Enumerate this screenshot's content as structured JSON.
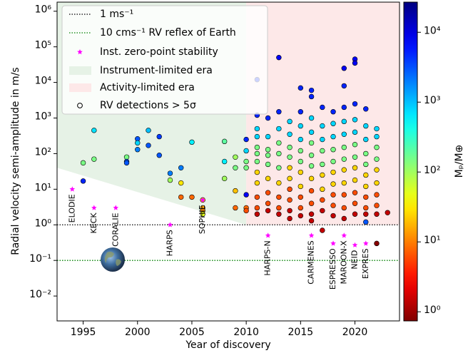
{
  "chart_data": {
    "type": "scatter",
    "xlabel": "Year of discovery",
    "ylabel": "Radial velocity semi-amplitude in m/s",
    "clabel": "Mₚ/M⊕",
    "log_y": true,
    "log_c": true,
    "xlim": [
      1992.6,
      2024.1
    ],
    "xticks": [
      1995,
      2000,
      2005,
      2010,
      2015,
      2020
    ],
    "ylim": [
      0.002,
      1800000
    ],
    "yticks": [
      {
        "value": 0.01,
        "label": "10⁻²"
      },
      {
        "value": 0.1,
        "label": "10⁻¹"
      },
      {
        "value": 1,
        "label": "10⁰"
      },
      {
        "value": 10,
        "label": "10¹"
      },
      {
        "value": 100,
        "label": "10²"
      },
      {
        "value": 1000,
        "label": "10³"
      },
      {
        "value": 10000,
        "label": "10⁴"
      },
      {
        "value": 100000,
        "label": "10⁵"
      },
      {
        "value": 1000000,
        "label": "10⁶"
      }
    ],
    "clim": [
      0.74,
      27000
    ],
    "cticks": [
      {
        "value": 1,
        "label": "10⁰"
      },
      {
        "value": 10,
        "label": "10¹"
      },
      {
        "value": 100,
        "label": "10²"
      },
      {
        "value": 1000,
        "label": "10³"
      },
      {
        "value": 10000,
        "label": "10⁴"
      }
    ],
    "colormap": "jet_r",
    "lines": [
      {
        "name": "1 ms⁻¹",
        "value": 1,
        "color": "#000000"
      },
      {
        "name": "10 cms⁻¹ RV reflex of Earth",
        "value": 0.1,
        "color": "#008000"
      }
    ],
    "stars_label": "Inst. zero-point stability",
    "star_color": "#ff00ff",
    "eras": {
      "instrument": {
        "label": "Instrument-limited era",
        "color": "#e6f2e6",
        "end_year": 2010,
        "K_start": 40,
        "K_end": 1
      },
      "activity": {
        "label": "Activity-limited era",
        "color": "#fde8e8",
        "start_year": 2010,
        "K_floor": 1
      }
    },
    "points_label": "RV detections > 5σ",
    "instruments": [
      {
        "name": "ELODIE",
        "year": 1994,
        "stability": 10
      },
      {
        "name": "KECK",
        "year": 1996,
        "stability": 3
      },
      {
        "name": "CORALIE",
        "year": 1998,
        "stability": 3
      },
      {
        "name": "HARPS",
        "year": 2003,
        "stability": 1
      },
      {
        "name": "SOPHIE",
        "year": 2006,
        "stability": 5
      },
      {
        "name": "HARPS-N",
        "year": 2012,
        "stability": 0.5
      },
      {
        "name": "CARMENES",
        "year": 2016,
        "stability": 0.5
      },
      {
        "name": "ESPRESSO",
        "year": 2018,
        "stability": 0.3
      },
      {
        "name": "MAROON-X",
        "year": 2019,
        "stability": 0.5
      },
      {
        "name": "NEID",
        "year": 2020,
        "stability": 0.27
      },
      {
        "name": "EXPRES",
        "year": 2021,
        "stability": 0.3
      }
    ],
    "series": [
      {
        "name": "RV detections > 5σ",
        "x": [
          1995,
          1995,
          1996,
          1996,
          1999,
          1999,
          1999,
          2000,
          2000,
          2000,
          2001,
          2001,
          2002,
          2002,
          2003,
          2003,
          2004,
          2004,
          2004,
          2005,
          2005,
          2006,
          2006,
          2006,
          2006,
          2008,
          2008,
          2008,
          2009,
          2009,
          2009,
          2009,
          2010,
          2010,
          2010,
          2010,
          2010,
          2010,
          2010,
          2011,
          2011,
          2011,
          2011,
          2011,
          2011,
          2011,
          2011,
          2011,
          2011,
          2011,
          2011,
          2012,
          2012,
          2012,
          2012,
          2012,
          2012,
          2012,
          2012,
          2012,
          2013,
          2013,
          2013,
          2013,
          2013,
          2013,
          2013,
          2013,
          2013,
          2013,
          2014,
          2014,
          2014,
          2014,
          2014,
          2014,
          2014,
          2014,
          2014,
          2014,
          2015,
          2015,
          2015,
          2015,
          2015,
          2015,
          2015,
          2015,
          2015,
          2015,
          2015,
          2016,
          2016,
          2016,
          2016,
          2016,
          2016,
          2016,
          2016,
          2016,
          2016,
          2016,
          2016,
          2017,
          2017,
          2017,
          2017,
          2017,
          2017,
          2017,
          2017,
          2017,
          2017,
          2018,
          2018,
          2018,
          2018,
          2018,
          2018,
          2018,
          2018,
          2018,
          2018,
          2019,
          2019,
          2019,
          2019,
          2019,
          2019,
          2019,
          2019,
          2019,
          2019,
          2019,
          2019,
          2020,
          2020,
          2020,
          2020,
          2020,
          2020,
          2020,
          2020,
          2020,
          2020,
          2020,
          2020,
          2021,
          2021,
          2021,
          2021,
          2021,
          2021,
          2021,
          2021,
          2021,
          2021,
          2021,
          2022,
          2022,
          2022,
          2022,
          2022,
          2022,
          2022,
          2022,
          2022,
          2022,
          2023
        ],
        "values": [
          17,
          55,
          450,
          70,
          80,
          60,
          55,
          260,
          200,
          130,
          450,
          170,
          300,
          90,
          28,
          18,
          40,
          6,
          15,
          210,
          6,
          5,
          3,
          2.5,
          2,
          220,
          60,
          20,
          9,
          80,
          40,
          3,
          250,
          120,
          60,
          40,
          7,
          3,
          2.5,
          12000,
          1200,
          500,
          300,
          150,
          100,
          60,
          30,
          15,
          6,
          3,
          2,
          1000,
          300,
          130,
          90,
          50,
          20,
          8,
          4,
          2.5,
          50000,
          1500,
          500,
          200,
          100,
          40,
          15,
          6,
          3,
          2,
          800,
          350,
          150,
          80,
          40,
          20,
          10,
          5,
          2.5,
          1.5,
          7000,
          1500,
          600,
          250,
          120,
          60,
          30,
          12,
          6,
          3,
          1.8,
          6000,
          4000,
          1000,
          400,
          200,
          90,
          45,
          20,
          9,
          4,
          2,
          1.3,
          2000,
          600,
          250,
          120,
          50,
          25,
          10,
          5,
          2.5,
          0.7,
          1500,
          700,
          300,
          130,
          60,
          30,
          14,
          7,
          3.5,
          1.8,
          25000,
          8000,
          2000,
          800,
          350,
          150,
          70,
          35,
          15,
          7,
          3,
          1.5,
          45000,
          35000,
          2500,
          900,
          400,
          180,
          80,
          40,
          18,
          8,
          4,
          2,
          1800,
          600,
          250,
          100,
          50,
          25,
          12,
          6,
          3,
          1.2,
          2,
          500,
          300,
          150,
          70,
          35,
          15,
          7,
          3.5,
          2,
          0.3,
          2.2
        ],
        "masses": [
          5000,
          150,
          700,
          150,
          150,
          3000,
          3000,
          3000,
          800,
          2000,
          1000,
          3000,
          4000,
          3000,
          2000,
          100,
          2000,
          8,
          30,
          600,
          8,
          20,
          15,
          12,
          50,
          200,
          600,
          100,
          20,
          100,
          150,
          8,
          5000,
          800,
          150,
          150,
          8000,
          8,
          6,
          5000,
          5000,
          800,
          800,
          150,
          150,
          150,
          25,
          25,
          6,
          6,
          1.5,
          5000,
          800,
          150,
          150,
          150,
          25,
          6,
          6,
          1.5,
          8000,
          5000,
          800,
          150,
          150,
          150,
          25,
          6,
          6,
          1.5,
          800,
          800,
          150,
          150,
          25,
          25,
          6,
          6,
          1.5,
          1.5,
          5000,
          5000,
          800,
          800,
          150,
          150,
          25,
          25,
          6,
          6,
          1.5,
          5000,
          5000,
          800,
          800,
          150,
          150,
          150,
          25,
          6,
          6,
          1.5,
          1.5,
          5000,
          800,
          800,
          150,
          150,
          25,
          25,
          6,
          1.5,
          1.5,
          5000,
          800,
          800,
          150,
          150,
          25,
          25,
          6,
          6,
          1.5,
          8000,
          5000,
          5000,
          800,
          800,
          150,
          150,
          25,
          25,
          6,
          6,
          1.5,
          8000,
          8000,
          5000,
          800,
          800,
          150,
          150,
          25,
          25,
          6,
          6,
          1.5,
          5000,
          800,
          800,
          150,
          150,
          25,
          25,
          6,
          6,
          3000,
          1.5,
          800,
          800,
          150,
          150,
          25,
          25,
          6,
          6,
          1.5,
          0.8,
          1.5
        ]
      }
    ]
  }
}
